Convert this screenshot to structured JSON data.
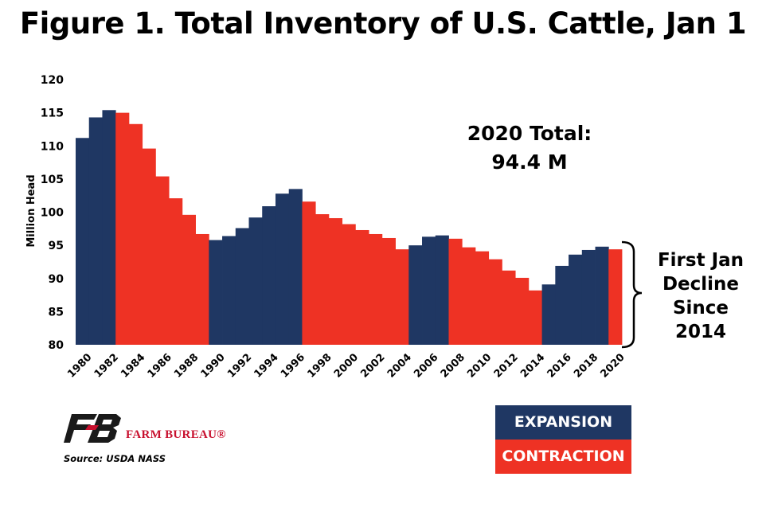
{
  "title": "Figure 1. Total Inventory of U.S. Cattle, Jan 1",
  "annotations": {
    "total_line1": "2020 Total:",
    "total_line2": "94.4 M",
    "side_line1": "First Jan",
    "side_line2": "Decline",
    "side_line3": "Since",
    "side_line4": "2014"
  },
  "legend": {
    "expansion_label": "EXPANSION",
    "contraction_label": "CONTRACTION",
    "expansion_color": "#1f3763",
    "contraction_color": "#ee3224"
  },
  "brand": {
    "name": "FARM BUREAU®"
  },
  "source": "Source:  USDA NASS",
  "chart_data": {
    "type": "bar",
    "title": "Figure 1. Total Inventory of U.S. Cattle, Jan 1",
    "ylabel": "Million Head",
    "xlabel": "",
    "ylim": [
      80,
      120
    ],
    "yticks": [
      80,
      85,
      90,
      95,
      100,
      105,
      110,
      115,
      120
    ],
    "xtick_labels": [
      "1980",
      "1982",
      "1984",
      "1986",
      "1988",
      "1990",
      "1992",
      "1994",
      "1996",
      "1998",
      "2000",
      "2002",
      "2004",
      "2006",
      "2008",
      "2010",
      "2012",
      "2014",
      "2016",
      "2018",
      "2020"
    ],
    "categories": [
      "1980",
      "1981",
      "1982",
      "1983",
      "1984",
      "1985",
      "1986",
      "1987",
      "1988",
      "1989",
      "1990",
      "1991",
      "1992",
      "1993",
      "1994",
      "1995",
      "1996",
      "1997",
      "1998",
      "1999",
      "2000",
      "2001",
      "2002",
      "2003",
      "2004",
      "2005",
      "2006",
      "2007",
      "2008",
      "2009",
      "2010",
      "2011",
      "2012",
      "2013",
      "2014",
      "2015",
      "2016",
      "2017",
      "2018",
      "2019",
      "2020"
    ],
    "values": [
      111.2,
      114.3,
      115.4,
      115.0,
      113.3,
      109.6,
      105.4,
      102.1,
      99.6,
      96.7,
      95.8,
      96.4,
      97.6,
      99.2,
      100.9,
      102.8,
      103.5,
      101.6,
      99.7,
      99.1,
      98.2,
      97.3,
      96.7,
      96.1,
      94.4,
      95.0,
      96.3,
      96.5,
      96.0,
      94.7,
      94.1,
      92.9,
      91.2,
      90.1,
      88.2,
      89.1,
      91.9,
      93.6,
      94.3,
      94.8,
      94.4
    ],
    "phases": [
      "expansion",
      "expansion",
      "expansion",
      "contraction",
      "contraction",
      "contraction",
      "contraction",
      "contraction",
      "contraction",
      "contraction",
      "expansion",
      "expansion",
      "expansion",
      "expansion",
      "expansion",
      "expansion",
      "expansion",
      "contraction",
      "contraction",
      "contraction",
      "contraction",
      "contraction",
      "contraction",
      "contraction",
      "contraction",
      "expansion",
      "expansion",
      "expansion",
      "contraction",
      "contraction",
      "contraction",
      "contraction",
      "contraction",
      "contraction",
      "contraction",
      "expansion",
      "expansion",
      "expansion",
      "expansion",
      "expansion",
      "contraction"
    ],
    "grid": false,
    "legend": "bottom-right"
  }
}
